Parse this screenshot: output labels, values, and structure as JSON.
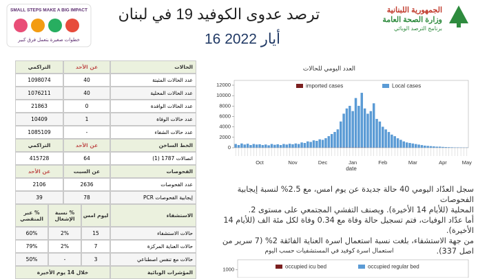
{
  "header": {
    "title": "ترصد عدوى الكوفيد 19 في لبنان",
    "date": "16 أيار 2022",
    "left_logo": {
      "slogan": "SMALL STEPS MAKE A BIG IMPACT",
      "arabic": "خطوات صغيرة بتعمل فرق كبير"
    },
    "right_logo": {
      "line1": "الجمهورية اللبنانية",
      "line2": "وزارة الصحة العامة",
      "line3": "برنامج الترصد الوبائي"
    }
  },
  "table": {
    "sections": [
      {
        "header": [
          "الحالات",
          "عن الأحد",
          "التراكمي"
        ],
        "rows": [
          [
            "عدد الحالات المثبتة",
            "40",
            "1098074"
          ],
          [
            "عدد الحالات المحلية",
            "40",
            "1076211"
          ],
          [
            "عدد الحالات الوافدة",
            "0",
            "21863"
          ],
          [
            "عدد حالات الوفاة",
            "1",
            "10409"
          ],
          [
            "عدد حالات الشفاء",
            "-",
            "1085109"
          ]
        ]
      },
      {
        "header": [
          "الخط الساخن",
          "عن الأحد",
          "التراكمي"
        ],
        "rows": [
          [
            "اتصالات 1787 (1)",
            "64",
            "415728"
          ]
        ]
      },
      {
        "header": [
          "الفحوصات",
          "عن السبت",
          "عن الأحد"
        ],
        "rows": [
          [
            "عدد الفحوصات",
            "2636",
            "2106"
          ],
          [
            "إيجابية الفحوصات PCR",
            "78",
            "39"
          ]
        ]
      },
      {
        "header": [
          "الاستشفاء",
          "ليوم امس",
          "% نسبة الإشغال",
          "% عبر المنقضي"
        ],
        "rows": [
          [
            "حالات الاستشفاء",
            "15",
            "2%",
            "60%"
          ],
          [
            "حالات العناية المركزة",
            "7",
            "2%",
            "79%"
          ],
          [
            "حالات مع تنفس اصطناعي",
            "3",
            "-",
            "50%"
          ]
        ]
      },
      {
        "header": [
          "المؤشرات الوبائية",
          "خلال 14 يوم الأخيرة"
        ],
        "rows": []
      }
    ]
  },
  "text": {
    "lines": [
      "سجل العدّاد اليومي 40 حالة جديدة عن يوم امس، مع 2.5% لنسبة إيجابية الفحوصات",
      "المحلية (للأيام 14 الأخيرة). ويصنف التفشي المجتمعي على مستوى 2.",
      "أما عدّاد الوفيات، فتم تسجيل حالة وفاة مع 0.34 وفاة لكل مئة الف (للأيام 14 الأخيرة).",
      "من جهة الاستشفاء، بلغت نسبة استعمال اسرة العناية الفائقة 2% (7 سرير من اصل 337)."
    ]
  },
  "chart_data": [
    {
      "type": "bar",
      "title": "العدد اليومي للحالات",
      "x_label": "date",
      "categories": [
        null,
        null,
        null,
        null,
        null,
        null,
        null,
        null,
        "Oct",
        null,
        null,
        null,
        null,
        null,
        null,
        null,
        null,
        null,
        null,
        "Nov",
        null,
        null,
        null,
        null,
        null,
        null,
        null,
        null,
        null,
        "Dec",
        null,
        null,
        null,
        null,
        null,
        null,
        null,
        null,
        null,
        "Jan",
        null,
        null,
        null,
        null,
        null,
        null,
        null,
        null,
        null,
        "Feb",
        null,
        null,
        null,
        null,
        null,
        null,
        null,
        null,
        null,
        "Mar",
        null,
        null,
        null,
        null,
        null,
        null,
        null,
        null,
        null,
        "Apr",
        null,
        null,
        null,
        null,
        null,
        null,
        null,
        "May"
      ],
      "series": [
        {
          "name": "imported cases",
          "color": "#7b1f1f",
          "values": [
            20,
            20,
            20,
            20,
            20,
            20,
            20,
            20,
            20,
            20,
            20,
            20,
            20,
            20,
            20,
            20,
            20,
            20,
            20,
            20,
            20,
            20,
            20,
            20,
            20,
            20,
            20,
            20,
            20,
            20,
            30,
            30,
            30,
            30,
            30,
            40,
            40,
            40,
            40,
            40,
            40,
            40,
            40,
            40,
            30,
            30,
            30,
            30,
            30,
            30,
            20,
            20,
            20,
            20,
            20,
            20,
            20,
            20,
            20,
            20,
            10,
            10,
            10,
            10,
            10,
            10,
            10,
            10,
            10,
            10,
            10,
            10,
            10,
            10,
            10,
            10,
            10,
            10
          ]
        },
        {
          "name": "Local cases",
          "color": "#5b9bd5",
          "values": [
            700,
            500,
            800,
            600,
            750,
            500,
            700,
            600,
            650,
            500,
            600,
            450,
            700,
            550,
            650,
            500,
            700,
            600,
            750,
            650,
            800,
            700,
            1000,
            900,
            1200,
            1100,
            1400,
            1300,
            1600,
            1500,
            1800,
            2200,
            2600,
            3000,
            3500,
            5000,
            6500,
            7500,
            8000,
            7000,
            9500,
            8000,
            10500,
            7500,
            6500,
            7000,
            8500,
            5500,
            5000,
            4000,
            3500,
            3000,
            2500,
            2200,
            1800,
            1500,
            1200,
            1000,
            900,
            800,
            700,
            600,
            500,
            400,
            350,
            300,
            250,
            200,
            200,
            150,
            120,
            100,
            80,
            60,
            60,
            50,
            40,
            40
          ]
        }
      ],
      "ylim": [
        0,
        12000
      ],
      "yticks": [
        0,
        2000,
        4000,
        6000,
        8000,
        10000,
        12000
      ],
      "stacked": true
    },
    {
      "type": "bar",
      "title": "استعمال اسرة كوفيد في المستشفيات حسب اليوم",
      "series": [
        {
          "name": "occupied icu bed",
          "color": "#7b1f1f"
        },
        {
          "name": "occupied regular bed",
          "color": "#5b9bd5"
        }
      ],
      "ylim": [
        0,
        1100
      ],
      "yticks": [
        1000
      ]
    }
  ]
}
